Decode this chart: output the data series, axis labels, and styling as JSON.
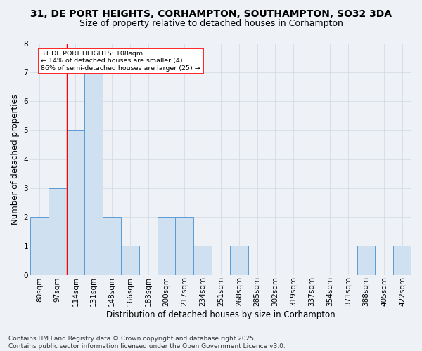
{
  "title": "31, DE PORT HEIGHTS, CORHAMPTON, SOUTHAMPTON, SO32 3DA",
  "subtitle": "Size of property relative to detached houses in Corhampton",
  "xlabel": "Distribution of detached houses by size in Corhampton",
  "ylabel": "Number of detached properties",
  "categories": [
    "80sqm",
    "97sqm",
    "114sqm",
    "131sqm",
    "148sqm",
    "166sqm",
    "183sqm",
    "200sqm",
    "217sqm",
    "234sqm",
    "251sqm",
    "268sqm",
    "285sqm",
    "302sqm",
    "319sqm",
    "337sqm",
    "354sqm",
    "371sqm",
    "388sqm",
    "405sqm",
    "422sqm"
  ],
  "values": [
    2,
    3,
    5,
    7,
    2,
    1,
    0,
    2,
    2,
    1,
    0,
    1,
    0,
    0,
    0,
    0,
    0,
    0,
    1,
    0,
    1
  ],
  "bar_color": "#cfe0f0",
  "bar_edge_color": "#5b9bd5",
  "bar_linewidth": 0.7,
  "grid_color": "#d0d8e0",
  "background_color": "#eef2f7",
  "axes_background": "#eef2f7",
  "red_line_x": 1.5,
  "annotation_text": "31 DE PORT HEIGHTS: 108sqm\n← 14% of detached houses are smaller (4)\n86% of semi-detached houses are larger (25) →",
  "annotation_box_color": "white",
  "annotation_box_edge": "red",
  "footer": "Contains HM Land Registry data © Crown copyright and database right 2025.\nContains public sector information licensed under the Open Government Licence v3.0.",
  "ylim": [
    0,
    8
  ],
  "yticks": [
    0,
    1,
    2,
    3,
    4,
    5,
    6,
    7,
    8
  ],
  "title_fontsize": 10,
  "subtitle_fontsize": 9,
  "footer_fontsize": 6.5,
  "ylabel_fontsize": 8.5,
  "xlabel_fontsize": 8.5,
  "tick_fontsize": 7.5
}
